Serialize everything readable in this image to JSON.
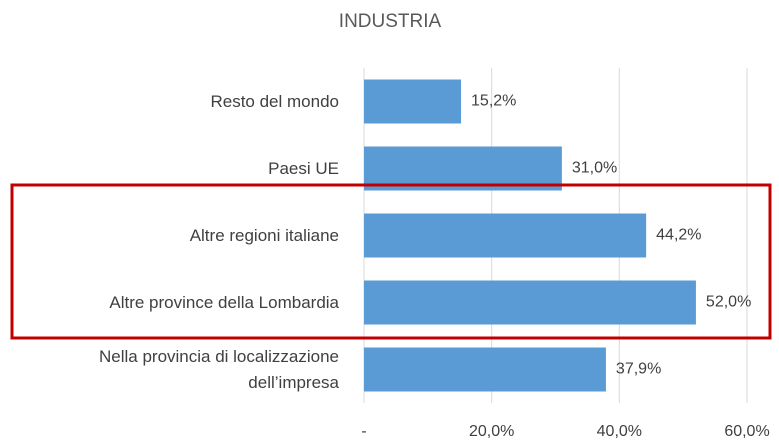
{
  "chart_data": {
    "type": "bar",
    "orientation": "horizontal",
    "title": "INDUSTRIA",
    "categories": [
      "Resto del mondo",
      "Paesi UE",
      "Altre regioni italiane",
      "Altre province della Lombardia",
      "Nella provincia di localizzazione\ndell’impresa"
    ],
    "values": [
      15.2,
      31.0,
      44.2,
      52.0,
      37.9
    ],
    "value_labels": [
      "15,2%",
      "31,0%",
      "44,2%",
      "52,0%",
      "37,9%"
    ],
    "color": "#5b9bd5",
    "xlim": [
      0,
      60
    ],
    "xticks": [
      {
        "value": 0,
        "label": "-"
      },
      {
        "value": 20,
        "label": "20,0%"
      },
      {
        "value": 40,
        "label": "40,0%"
      },
      {
        "value": 60,
        "label": "60,0%"
      }
    ],
    "grid": true
  }
}
